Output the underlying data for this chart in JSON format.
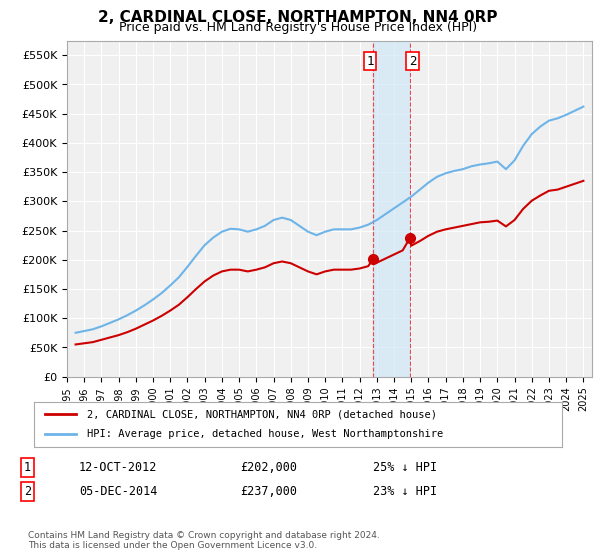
{
  "title": "2, CARDINAL CLOSE, NORTHAMPTON, NN4 0RP",
  "subtitle": "Price paid vs. HM Land Registry's House Price Index (HPI)",
  "ylabel_ticks": [
    "£0",
    "£50K",
    "£100K",
    "£150K",
    "£200K",
    "£250K",
    "£300K",
    "£350K",
    "£400K",
    "£450K",
    "£500K",
    "£550K"
  ],
  "ytick_values": [
    0,
    50000,
    100000,
    150000,
    200000,
    250000,
    300000,
    350000,
    400000,
    450000,
    500000,
    550000
  ],
  "ylim": [
    0,
    575000
  ],
  "xlim_start": 1995.0,
  "xlim_end": 2025.5,
  "transaction1_date": "12-OCT-2012",
  "transaction1_price": 202000,
  "transaction1_year": 2012.79,
  "transaction1_label": "1",
  "transaction1_pct": "25% ↓ HPI",
  "transaction2_date": "05-DEC-2014",
  "transaction2_price": 237000,
  "transaction2_year": 2014.92,
  "transaction2_label": "2",
  "transaction2_pct": "23% ↓ HPI",
  "legend_line1": "2, CARDINAL CLOSE, NORTHAMPTON, NN4 0RP (detached house)",
  "legend_line2": "HPI: Average price, detached house, West Northamptonshire",
  "footer": "Contains HM Land Registry data © Crown copyright and database right 2024.\nThis data is licensed under the Open Government Licence v3.0.",
  "hpi_color": "#6eb4e8",
  "price_color": "#cc0000",
  "background_color": "#ffffff",
  "plot_bg_color": "#f0f0f0",
  "grid_color": "#ffffff",
  "transaction_shade_color": "#d0e8f8"
}
